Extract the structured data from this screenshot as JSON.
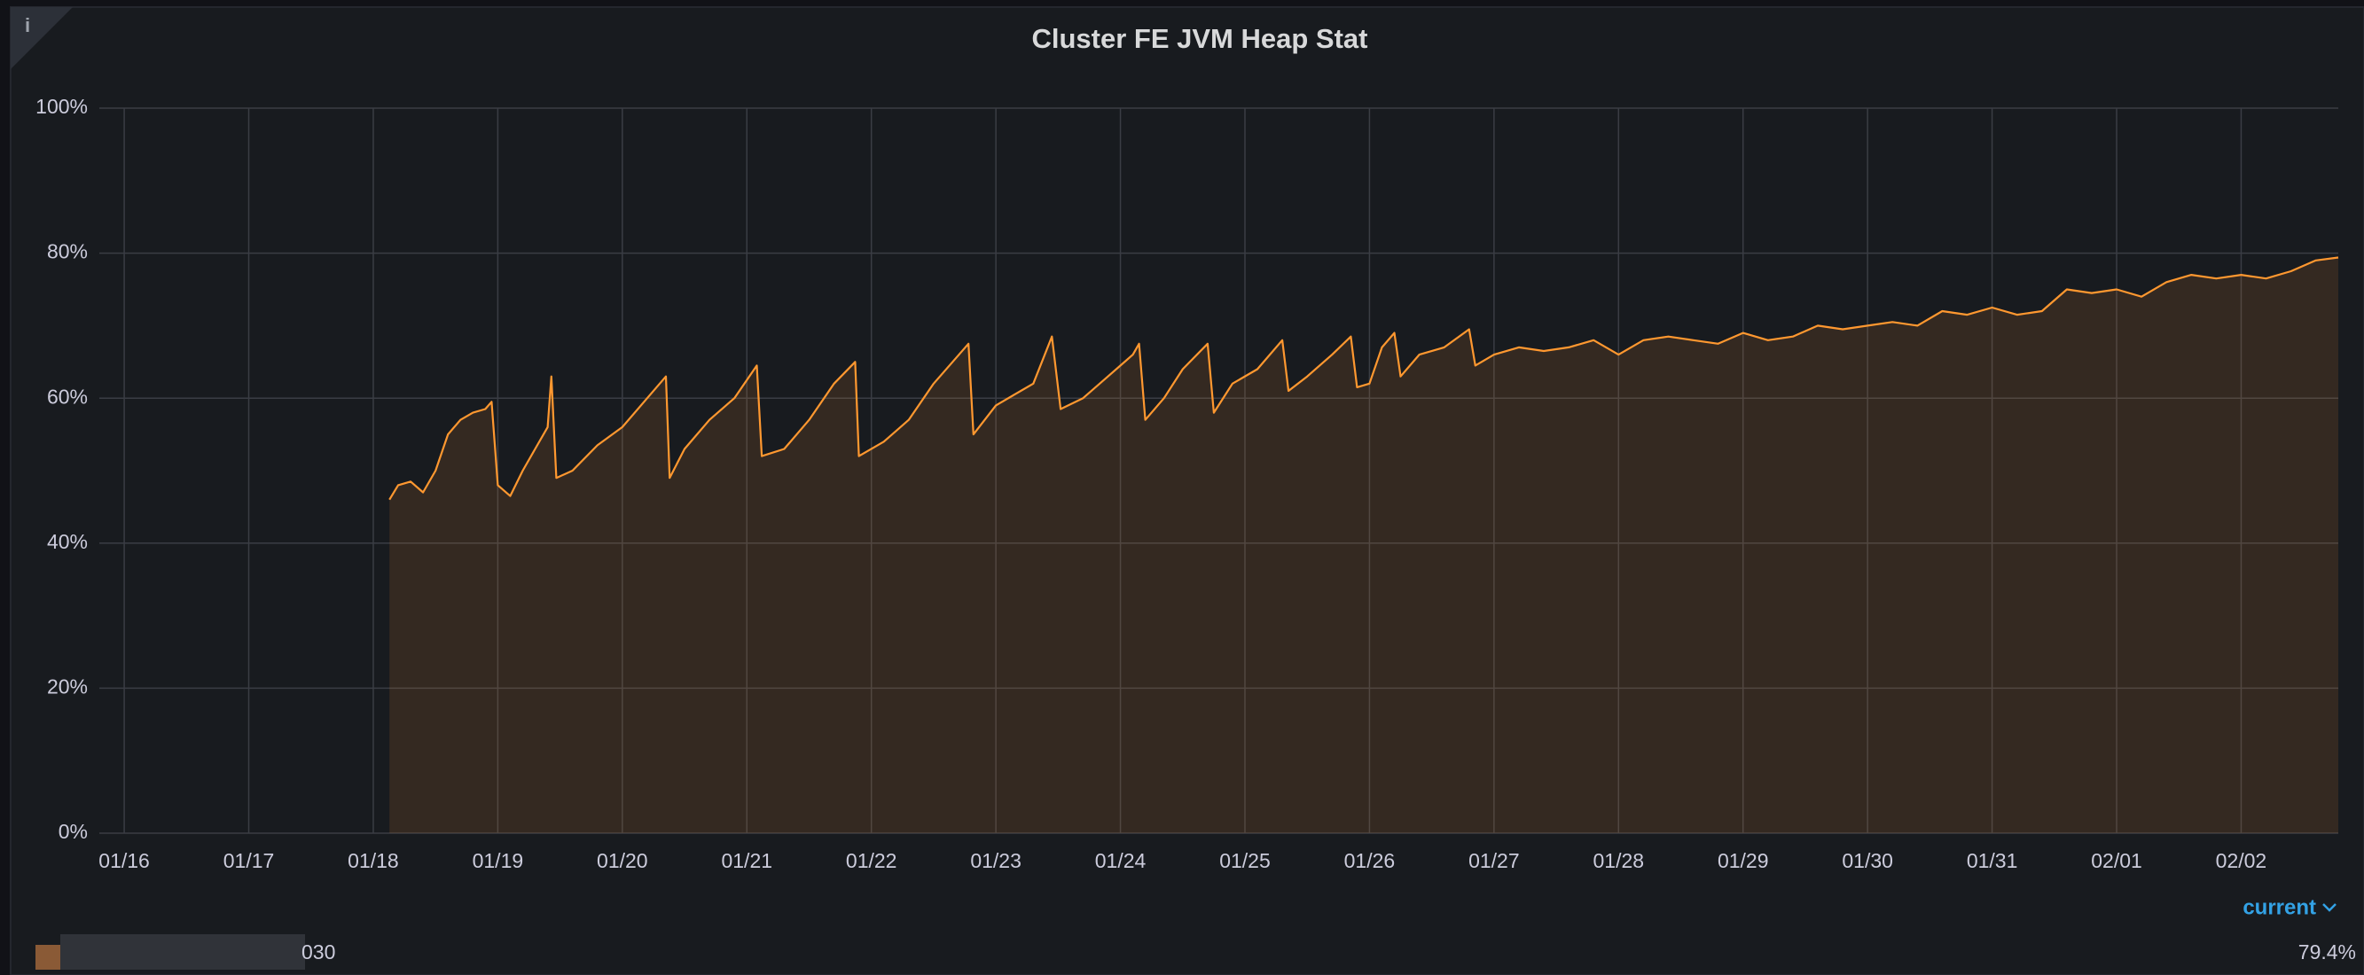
{
  "chart_data": {
    "type": "line",
    "title": "Cluster FE JVM Heap Stat",
    "info_icon": "i",
    "x": [
      2.13,
      2.2,
      2.3,
      2.4,
      2.5,
      2.6,
      2.7,
      2.8,
      2.9,
      2.95,
      3.0,
      3.1,
      3.2,
      3.3,
      3.4,
      3.43,
      3.47,
      3.6,
      3.8,
      4.0,
      4.2,
      4.35,
      4.38,
      4.5,
      4.7,
      4.9,
      5.08,
      5.12,
      5.3,
      5.5,
      5.7,
      5.87,
      5.9,
      6.1,
      6.3,
      6.5,
      6.78,
      6.82,
      7.0,
      7.2,
      7.3,
      7.45,
      7.52,
      7.7,
      7.9,
      8.1,
      8.15,
      8.2,
      8.35,
      8.5,
      8.7,
      8.75,
      8.9,
      9.1,
      9.3,
      9.35,
      9.5,
      9.7,
      9.85,
      9.9,
      10.0,
      10.1,
      10.2,
      10.25,
      10.4,
      10.6,
      10.8,
      10.85,
      11.0,
      11.2,
      11.4,
      11.6,
      11.8,
      12.0,
      12.2,
      12.4,
      12.6,
      12.8,
      13.0,
      13.2,
      13.4,
      13.6,
      13.8,
      14.0,
      14.2,
      14.4,
      14.6,
      14.8,
      15.0,
      15.2,
      15.4,
      15.6,
      15.8,
      16.0,
      16.2,
      16.4,
      16.6,
      16.8,
      17.0,
      17.2,
      17.4,
      17.6,
      17.78
    ],
    "series": [
      {
        "name": "030",
        "color": "#ff9830",
        "values": [
          46,
          48,
          48.5,
          47,
          50,
          55,
          57,
          58,
          58.5,
          59.5,
          48,
          46.5,
          50,
          53,
          56,
          63,
          49,
          50,
          53.5,
          56,
          60,
          63,
          49,
          53,
          57,
          60,
          64.5,
          52,
          53,
          57,
          62,
          65,
          52,
          54,
          57,
          62,
          67.5,
          55,
          59,
          61,
          62,
          68.5,
          58.5,
          60,
          63,
          66,
          67.5,
          57,
          60,
          64,
          67.5,
          58,
          62,
          64,
          68,
          61,
          63,
          66,
          68.5,
          61.5,
          62,
          67,
          69,
          63,
          66,
          67,
          69.5,
          64.5,
          66,
          67,
          66.5,
          67,
          68,
          66,
          68,
          68.5,
          68,
          67.5,
          69,
          68,
          68.5,
          70,
          69.5,
          70,
          70.5,
          70,
          72,
          71.5,
          72.5,
          71.5,
          72,
          75,
          74.5,
          75,
          74,
          76,
          77,
          76.5,
          77,
          76.5,
          77.5,
          79,
          79.4
        ],
        "current": 79.4,
        "current_label": "79.4%"
      }
    ],
    "legend_column": "current",
    "xlim": [
      -0.2,
      17.78
    ],
    "xticks": [
      {
        "value": 0,
        "label": "01/16"
      },
      {
        "value": 1,
        "label": "01/17"
      },
      {
        "value": 2,
        "label": "01/18"
      },
      {
        "value": 3,
        "label": "01/19"
      },
      {
        "value": 4,
        "label": "01/20"
      },
      {
        "value": 5,
        "label": "01/21"
      },
      {
        "value": 6,
        "label": "01/22"
      },
      {
        "value": 7,
        "label": "01/23"
      },
      {
        "value": 8,
        "label": "01/24"
      },
      {
        "value": 9,
        "label": "01/25"
      },
      {
        "value": 10,
        "label": "01/26"
      },
      {
        "value": 11,
        "label": "01/27"
      },
      {
        "value": 12,
        "label": "01/28"
      },
      {
        "value": 13,
        "label": "01/29"
      },
      {
        "value": 14,
        "label": "01/30"
      },
      {
        "value": 15,
        "label": "01/31"
      },
      {
        "value": 16,
        "label": "02/01"
      },
      {
        "value": 17,
        "label": "02/02"
      }
    ],
    "ylim": [
      0,
      100
    ],
    "yticks": [
      {
        "value": 0,
        "label": "0%"
      },
      {
        "value": 20,
        "label": "20%"
      },
      {
        "value": 40,
        "label": "40%"
      },
      {
        "value": 60,
        "label": "60%"
      },
      {
        "value": 80,
        "label": "80%"
      },
      {
        "value": 100,
        "label": "100%"
      }
    ],
    "grid": true
  }
}
